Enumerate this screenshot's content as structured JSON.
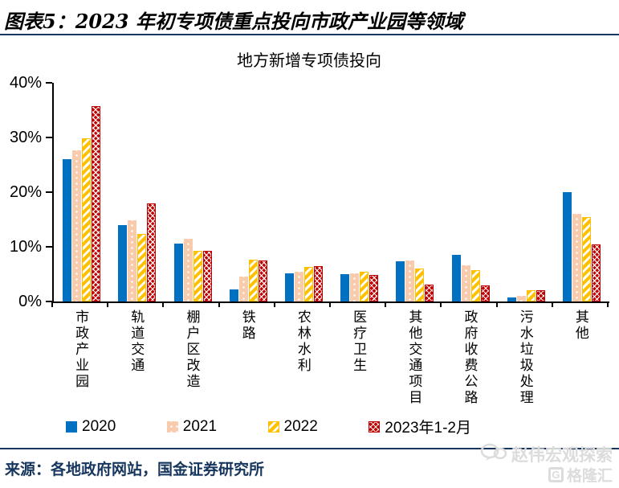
{
  "header": {
    "figure_title": "图表5：2023 年初专项债重点投向市政产业园等领域"
  },
  "chart_data": {
    "type": "bar",
    "title": "地方新增专项债投向",
    "categories": [
      "市政产业园",
      "轨道交通",
      "棚户区改造",
      "铁路",
      "农林水利",
      "医疗卫生",
      "其他交通项目",
      "政府收费公路",
      "污水垃圾处理",
      "其他"
    ],
    "series": [
      {
        "name": "2020",
        "color": "#0070C0",
        "pattern": "solid",
        "values": [
          26.0,
          14.0,
          10.6,
          2.2,
          5.1,
          5.0,
          7.3,
          8.5,
          0.8,
          20.0
        ]
      },
      {
        "name": "2021",
        "color": "#F8CBAD",
        "pattern": "dots",
        "values": [
          27.6,
          14.9,
          11.5,
          4.6,
          5.4,
          5.2,
          7.5,
          6.6,
          1.1,
          16.1
        ]
      },
      {
        "name": "2022",
        "color": "#FFC000",
        "pattern": "diagonal-stripes",
        "values": [
          29.9,
          12.3,
          9.3,
          7.7,
          6.4,
          5.4,
          6.0,
          5.8,
          2.0,
          15.5
        ]
      },
      {
        "name": "2023年1-2月",
        "color": "#C00000",
        "pattern": "crosshatch",
        "values": [
          35.7,
          18.0,
          9.3,
          7.5,
          6.5,
          4.8,
          3.1,
          2.9,
          2.1,
          10.4
        ]
      }
    ],
    "y_ticks": [
      "40%",
      "30%",
      "20%",
      "10%",
      "0%"
    ],
    "ylim": [
      0,
      40
    ],
    "grid": false,
    "legend_position": "bottom",
    "unit": "percent"
  },
  "footer": {
    "source": "来源：各地政府网站，国金证券研究所"
  },
  "watermark": {
    "brand": "赵伟宏观探索",
    "logo_letter": "G",
    "logo_text": "格隆汇"
  },
  "colors": {
    "divider_navy": "#17365D",
    "axis_black": "#000000",
    "series_blue": "#0070C0",
    "series_peach": "#F8CBAD",
    "series_gold": "#FFC000",
    "series_dark_red": "#C00000",
    "watermark_gray": "#DCDCDC"
  }
}
